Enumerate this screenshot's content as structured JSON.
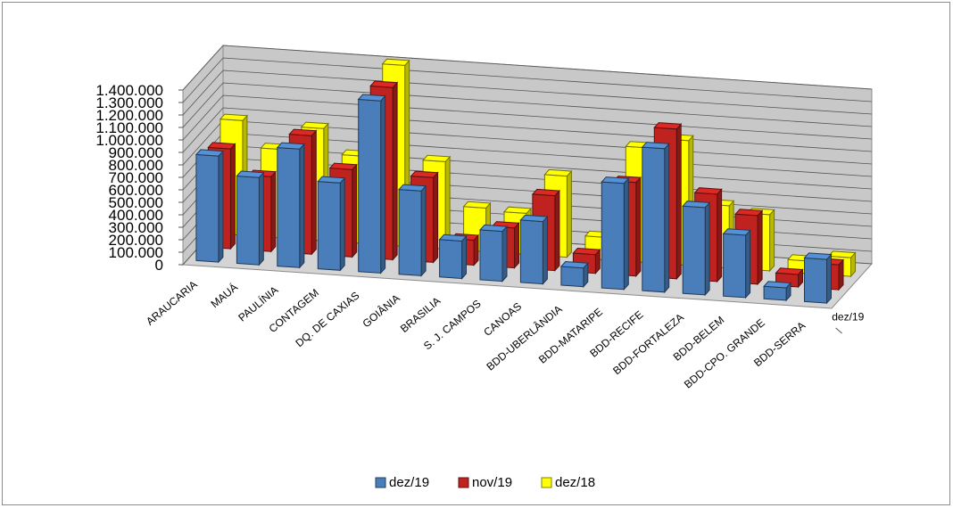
{
  "chart_data": {
    "type": "bar",
    "categories": [
      "ARAUCARIA",
      "MAUÁ",
      "PAULÍNIA",
      "CONTAGEM",
      "DQ. DE CAXIAS",
      "GOIÂNIA",
      "BRASILIA",
      "S. J. CAMPOS",
      "CANOAS",
      "BDD-UBERLÂNDIA",
      "BDD-MATARIPE",
      "BDD-RECIFE",
      "BDD-FORTALEZA",
      "BDD-BELEM",
      "BDD-CPO. GRANDE",
      "BDD-SERRA"
    ],
    "series": [
      {
        "name": "dez/19",
        "color": "#4a7ebb",
        "values": [
          850000,
          700000,
          950000,
          700000,
          1380000,
          680000,
          300000,
          400000,
          500000,
          150000,
          850000,
          1150000,
          700000,
          500000,
          100000,
          350000
        ]
      },
      {
        "name": "nov/19",
        "color": "#c0231f",
        "values": [
          800000,
          600000,
          950000,
          700000,
          1380000,
          680000,
          200000,
          320000,
          600000,
          150000,
          750000,
          1200000,
          700000,
          550000,
          100000,
          200000
        ]
      },
      {
        "name": "dez/18",
        "color": "#ffff00",
        "values": [
          920000,
          710000,
          900000,
          700000,
          1450000,
          700000,
          350000,
          330000,
          650000,
          180000,
          920000,
          1000000,
          500000,
          450000,
          100000,
          150000
        ]
      }
    ],
    "yticks": [
      "0",
      "100.000",
      "200.000",
      "300.000",
      "400.000",
      "500.000",
      "600.000",
      "700.000",
      "800.000",
      "900.000",
      "1.000.000",
      "1.100.000",
      "1.200.000",
      "1.300.000",
      "1.400.000"
    ],
    "ylim": [
      0,
      1400000
    ],
    "depth_axis_label": "dez/19",
    "grid": true,
    "legend_position": "bottom"
  }
}
